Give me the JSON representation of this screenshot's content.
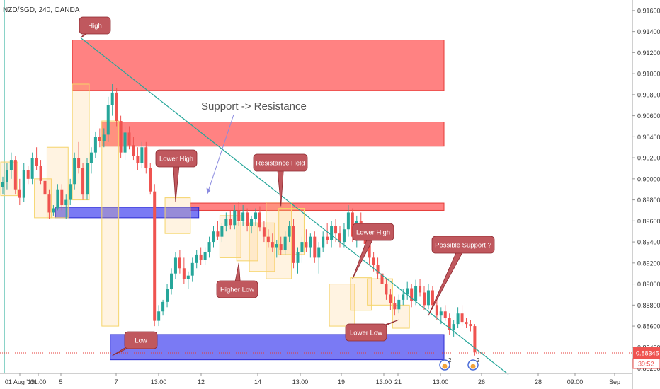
{
  "header": {
    "symbol_label": "NZD/SGD, 240, OANDA"
  },
  "chart_data": {
    "type": "candlestick",
    "symbol": "NZD/SGD",
    "interval": "240",
    "source": "OANDA",
    "ylim": [
      0.8815,
      0.917
    ],
    "y_ticks": [
      "0.91600",
      "0.91400",
      "0.91200",
      "0.91000",
      "0.90800",
      "0.90600",
      "0.90400",
      "0.90200",
      "0.90000",
      "0.89800",
      "0.89600",
      "0.89400",
      "0.89200",
      "0.89000",
      "0.88800",
      "0.88600",
      "0.88400",
      "0.88200"
    ],
    "x_ticks": [
      "01 Aug '19",
      "01:00",
      "5",
      "7",
      "13:00",
      "12",
      "14",
      "13:00",
      "19",
      "13:00",
      "21",
      "13:00",
      "26",
      "28",
      "09:00",
      "Sep"
    ],
    "last_price": "0.88345",
    "countdown": "39:52",
    "candles": [
      [
        0.8992,
        0.9002,
        0.8985,
        0.8997
      ],
      [
        0.8997,
        0.9015,
        0.899,
        0.9008
      ],
      [
        0.9008,
        0.9025,
        0.9,
        0.9018
      ],
      [
        0.9018,
        0.9022,
        0.8985,
        0.899
      ],
      [
        0.899,
        0.9,
        0.8975,
        0.8982
      ],
      [
        0.8982,
        0.9015,
        0.8978,
        0.9008
      ],
      [
        0.9008,
        0.9012,
        0.8995,
        0.9
      ],
      [
        0.9,
        0.9025,
        0.8995,
        0.902
      ],
      [
        0.902,
        0.903,
        0.9008,
        0.9012
      ],
      [
        0.9012,
        0.9018,
        0.8995,
        0.8998
      ],
      [
        0.8998,
        0.9002,
        0.898,
        0.8985
      ],
      [
        0.8985,
        0.899,
        0.8962,
        0.8968
      ],
      [
        0.8968,
        0.8975,
        0.8965,
        0.8972
      ],
      [
        0.8972,
        0.8995,
        0.897,
        0.899
      ],
      [
        0.899,
        0.8995,
        0.897,
        0.8975
      ],
      [
        0.8975,
        0.8985,
        0.8962,
        0.898
      ],
      [
        0.898,
        0.9,
        0.8975,
        0.8995
      ],
      [
        0.8995,
        0.9025,
        0.899,
        0.902
      ],
      [
        0.902,
        0.9035,
        0.9005,
        0.901
      ],
      [
        0.901,
        0.9015,
        0.898,
        0.8985
      ],
      [
        0.8985,
        0.902,
        0.898,
        0.9015
      ],
      [
        0.9015,
        0.903,
        0.9005,
        0.9025
      ],
      [
        0.9025,
        0.9045,
        0.902,
        0.904
      ],
      [
        0.904,
        0.9048,
        0.903,
        0.9036
      ],
      [
        0.9036,
        0.9048,
        0.903,
        0.9042
      ],
      [
        0.9042,
        0.9078,
        0.9035,
        0.907
      ],
      [
        0.907,
        0.909,
        0.906,
        0.9082
      ],
      [
        0.9082,
        0.9086,
        0.905,
        0.9055
      ],
      [
        0.9055,
        0.906,
        0.902,
        0.9025
      ],
      [
        0.9025,
        0.905,
        0.9018,
        0.9044
      ],
      [
        0.9044,
        0.905,
        0.9028,
        0.9032
      ],
      [
        0.9032,
        0.904,
        0.9018,
        0.9022
      ],
      [
        0.9022,
        0.903,
        0.9008,
        0.9015
      ],
      [
        0.9015,
        0.9035,
        0.901,
        0.903
      ],
      [
        0.903,
        0.9035,
        0.9005,
        0.901
      ],
      [
        0.901,
        0.9015,
        0.8985,
        0.8988
      ],
      [
        0.8988,
        0.8995,
        0.886,
        0.8865
      ],
      [
        0.8865,
        0.888,
        0.886,
        0.8874
      ],
      [
        0.8874,
        0.8885,
        0.887,
        0.8883
      ],
      [
        0.8883,
        0.89,
        0.8878,
        0.8895
      ],
      [
        0.8895,
        0.8915,
        0.889,
        0.891
      ],
      [
        0.891,
        0.893,
        0.8905,
        0.8925
      ],
      [
        0.8925,
        0.8932,
        0.891,
        0.8915
      ],
      [
        0.8915,
        0.8925,
        0.89,
        0.8905
      ],
      [
        0.8905,
        0.8912,
        0.8895,
        0.8908
      ],
      [
        0.8908,
        0.8925,
        0.8902,
        0.892
      ],
      [
        0.892,
        0.8932,
        0.8915,
        0.8928
      ],
      [
        0.8928,
        0.8935,
        0.8918,
        0.8923
      ],
      [
        0.8923,
        0.8935,
        0.8918,
        0.893
      ],
      [
        0.893,
        0.8945,
        0.8925,
        0.894
      ],
      [
        0.894,
        0.8955,
        0.8935,
        0.895
      ],
      [
        0.895,
        0.896,
        0.8942,
        0.8945
      ],
      [
        0.8945,
        0.8958,
        0.894,
        0.8955
      ],
      [
        0.8955,
        0.8968,
        0.895,
        0.8962
      ],
      [
        0.8962,
        0.897,
        0.8952,
        0.8956
      ],
      [
        0.8956,
        0.8975,
        0.8952,
        0.897
      ],
      [
        0.897,
        0.8978,
        0.8955,
        0.896
      ],
      [
        0.896,
        0.8975,
        0.8955,
        0.8968
      ],
      [
        0.8968,
        0.8972,
        0.895,
        0.8955
      ],
      [
        0.8955,
        0.8965,
        0.8948,
        0.8962
      ],
      [
        0.8962,
        0.8972,
        0.8955,
        0.8968
      ],
      [
        0.8968,
        0.8974,
        0.895,
        0.8954
      ],
      [
        0.8954,
        0.896,
        0.894,
        0.8945
      ],
      [
        0.8945,
        0.8952,
        0.8935,
        0.894
      ],
      [
        0.894,
        0.8948,
        0.893,
        0.8935
      ],
      [
        0.8935,
        0.8942,
        0.8925,
        0.8938
      ],
      [
        0.8938,
        0.8945,
        0.8928,
        0.8932
      ],
      [
        0.8932,
        0.895,
        0.8928,
        0.8945
      ],
      [
        0.8945,
        0.896,
        0.894,
        0.8955
      ],
      [
        0.8955,
        0.8962,
        0.8915,
        0.892
      ],
      [
        0.892,
        0.8935,
        0.891,
        0.893
      ],
      [
        0.893,
        0.8945,
        0.892,
        0.894
      ],
      [
        0.894,
        0.8952,
        0.893,
        0.8935
      ],
      [
        0.8935,
        0.8948,
        0.8925,
        0.8945
      ],
      [
        0.8945,
        0.895,
        0.892,
        0.8925
      ],
      [
        0.8925,
        0.894,
        0.891,
        0.8935
      ],
      [
        0.8935,
        0.895,
        0.893,
        0.8945
      ],
      [
        0.8945,
        0.8958,
        0.8938,
        0.8942
      ],
      [
        0.8942,
        0.896,
        0.8935,
        0.8955
      ],
      [
        0.8955,
        0.8962,
        0.894,
        0.8948
      ],
      [
        0.8948,
        0.8955,
        0.8935,
        0.894
      ],
      [
        0.894,
        0.8958,
        0.8935,
        0.8952
      ],
      [
        0.8952,
        0.8975,
        0.8945,
        0.8968
      ],
      [
        0.8968,
        0.8972,
        0.894,
        0.8945
      ],
      [
        0.8945,
        0.8965,
        0.8935,
        0.896
      ],
      [
        0.896,
        0.8968,
        0.8948,
        0.8952
      ],
      [
        0.8952,
        0.8958,
        0.8932,
        0.8938
      ],
      [
        0.8938,
        0.8945,
        0.8918,
        0.8925
      ],
      [
        0.8925,
        0.893,
        0.8912,
        0.8918
      ],
      [
        0.8918,
        0.8925,
        0.8905,
        0.891
      ],
      [
        0.891,
        0.8918,
        0.8895,
        0.89
      ],
      [
        0.89,
        0.8905,
        0.8885,
        0.889
      ],
      [
        0.889,
        0.8895,
        0.8875,
        0.8882
      ],
      [
        0.8882,
        0.8888,
        0.887,
        0.8876
      ],
      [
        0.8876,
        0.889,
        0.8872,
        0.8885
      ],
      [
        0.8885,
        0.8895,
        0.888,
        0.889
      ],
      [
        0.889,
        0.8902,
        0.8885,
        0.8896
      ],
      [
        0.8896,
        0.89,
        0.8878,
        0.8884
      ],
      [
        0.8884,
        0.8904,
        0.888,
        0.8898
      ],
      [
        0.8898,
        0.8905,
        0.8888,
        0.8892
      ],
      [
        0.8892,
        0.8898,
        0.8875,
        0.888
      ],
      [
        0.888,
        0.89,
        0.8876,
        0.8894
      ],
      [
        0.8894,
        0.8898,
        0.8876,
        0.888
      ],
      [
        0.888,
        0.8885,
        0.8866,
        0.887
      ],
      [
        0.887,
        0.8878,
        0.8862,
        0.8874
      ],
      [
        0.8874,
        0.888,
        0.8865,
        0.8868
      ],
      [
        0.8868,
        0.8872,
        0.8852,
        0.8856
      ],
      [
        0.8856,
        0.8866,
        0.885,
        0.8862
      ],
      [
        0.8862,
        0.8878,
        0.8858,
        0.8872
      ],
      [
        0.8872,
        0.888,
        0.886,
        0.8864
      ],
      [
        0.8864,
        0.8868,
        0.8858,
        0.8862
      ],
      [
        0.8862,
        0.8866,
        0.8855,
        0.886
      ],
      [
        0.886,
        0.8862,
        0.8832,
        0.8835
      ]
    ],
    "zones": [
      {
        "kind": "resistance",
        "y_top": 0.9132,
        "y_bottom": 0.9084,
        "i_start": 17,
        "i_end": null
      },
      {
        "kind": "resistance",
        "y_top": 0.9054,
        "y_bottom": 0.9031,
        "i_start": 24,
        "i_end": null
      },
      {
        "kind": "resistance",
        "y_top": 0.8977,
        "y_bottom": 0.897,
        "i_start": 45,
        "i_end": null
      },
      {
        "kind": "support",
        "y_top": 0.8973,
        "y_bottom": 0.8963,
        "i_start": 13,
        "i_end": 46
      },
      {
        "kind": "support",
        "y_top": 0.8852,
        "y_bottom": 0.8828,
        "i_start": 26,
        "i_end": null
      }
    ],
    "highlight_boxes": [
      [
        0,
        3,
        0.8984,
        0.9016
      ],
      [
        8,
        11,
        0.8963,
        0.9
      ],
      [
        11,
        15,
        0.8963,
        0.903
      ],
      [
        17,
        20,
        0.898,
        0.909
      ],
      [
        24,
        27,
        0.886,
        0.9055
      ],
      [
        39,
        44,
        0.8948,
        0.8982
      ],
      [
        52,
        56,
        0.8925,
        0.8965
      ],
      [
        56,
        60,
        0.8922,
        0.8958
      ],
      [
        59,
        64,
        0.8912,
        0.8958
      ],
      [
        63,
        68,
        0.8905,
        0.8978
      ],
      [
        66,
        71,
        0.8928,
        0.8972
      ],
      [
        78,
        83,
        0.886,
        0.89
      ],
      [
        83,
        87,
        0.8875,
        0.8906
      ],
      [
        87,
        92,
        0.888,
        0.8905
      ],
      [
        93,
        96,
        0.8858,
        0.888
      ]
    ],
    "trendline": {
      "i_start": 18.5,
      "y_start": 0.9134,
      "i_end": 120,
      "y_end": 0.8814
    },
    "last_price_line_color": "#e53935",
    "trendline_color": "#26a69a",
    "annotations": [
      {
        "text": "High",
        "target_i": 18.5,
        "target_y": 0.9134,
        "style": "callout"
      },
      {
        "text": "Low",
        "target_i": 26,
        "target_y": 0.8832,
        "style": "callout"
      },
      {
        "text": "Lower High",
        "target_i": 41,
        "target_y": 0.8978,
        "style": "callout"
      },
      {
        "text": "Resistance Held",
        "target_i": 66,
        "target_y": 0.8974,
        "style": "callout"
      },
      {
        "text": "Higher Low",
        "target_i": 56,
        "target_y": 0.892,
        "style": "callout"
      },
      {
        "text": "Lower High",
        "target_i": 83,
        "target_y": 0.8905,
        "style": "callout"
      },
      {
        "text": "Lower Low",
        "target_i": 94,
        "target_y": 0.8866,
        "style": "callout"
      },
      {
        "text": "Possible Support ?",
        "target_i": 101,
        "target_y": 0.887,
        "style": "callout"
      },
      {
        "text": "Support -> Resistance",
        "target_i": 48,
        "target_y": 0.898,
        "style": "arrow"
      }
    ],
    "event_markers": [
      {
        "count": "2"
      },
      {
        "count": "2"
      }
    ],
    "colors": {
      "up": "#26a69a",
      "down": "#ef5350",
      "zone_red": "#ff6b6b",
      "zone_blue": "#5a5cf2"
    }
  }
}
